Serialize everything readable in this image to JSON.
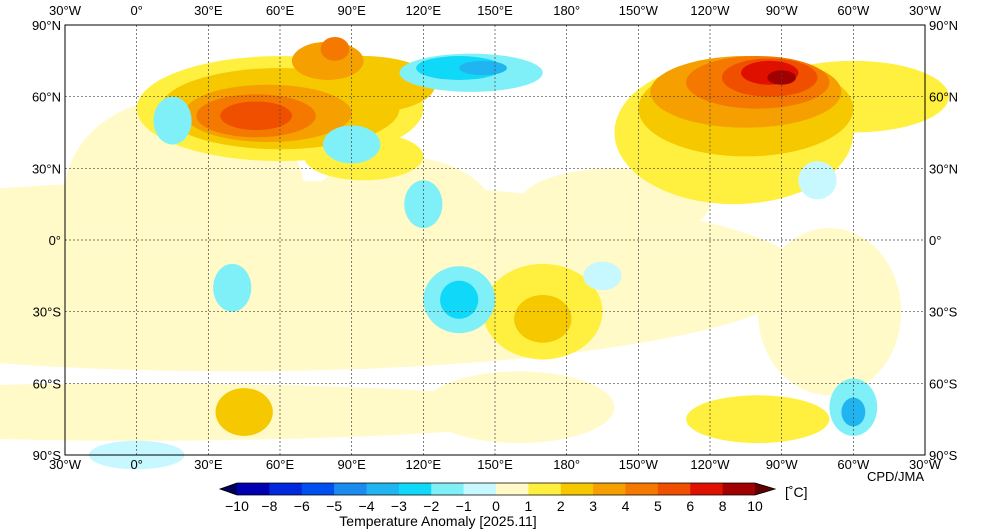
{
  "map": {
    "lon_labels": [
      "30°W",
      "0°",
      "30°E",
      "60°E",
      "90°E",
      "120°E",
      "150°E",
      "180°",
      "150°W",
      "120°W",
      "90°W",
      "60°W",
      "30°W"
    ],
    "lat_labels": [
      "90°N",
      "60°N",
      "30°N",
      "0°",
      "30°S",
      "60°S",
      "90°S"
    ],
    "credit": "CPD/JMA",
    "projection": "equirectangular, 30°W to 30°W",
    "grid": "dashed every 30°"
  },
  "colorbar": {
    "ticks": [
      "−10",
      "−8",
      "−6",
      "−5",
      "−4",
      "−3",
      "−2",
      "−1",
      "0",
      "1",
      "2",
      "3",
      "4",
      "5",
      "6",
      "8",
      "10"
    ],
    "unit": "[˚C]",
    "title": "Temperature Anomaly [2025.11]",
    "colors": [
      "#00005a",
      "#0000b0",
      "#0028dc",
      "#0050f0",
      "#1a8cf0",
      "#20b4f0",
      "#10d8f8",
      "#80f0f8",
      "#c8f8ff",
      "#fffac8",
      "#fff040",
      "#f5c800",
      "#f5a000",
      "#f57800",
      "#f04f00",
      "#e01000",
      "#a00000",
      "#600000"
    ]
  }
}
